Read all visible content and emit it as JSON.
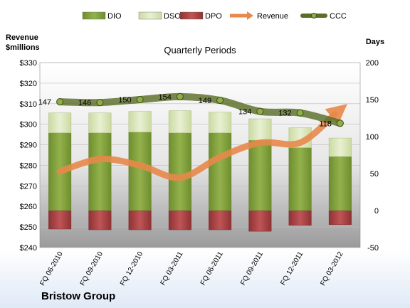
{
  "chart_data": {
    "type": "bar",
    "title": "Quarterly Periods",
    "company": "Bristow Group",
    "left_axis_label": [
      "Revenue",
      "$millions"
    ],
    "right_axis_label": "Days",
    "categories": [
      "FQ 06-2010",
      "FQ 09-2010",
      "FQ 12-2010",
      "FQ 03-2011",
      "FQ 06-2011",
      "FQ 09-2011",
      "FQ 12-2011",
      "FQ 03-2012"
    ],
    "left_axis": {
      "min": 240,
      "max": 330,
      "step": 10,
      "prefix": "$"
    },
    "right_axis": {
      "min": -50,
      "max": 200,
      "step": 50
    },
    "grid": true,
    "legend_position": "top",
    "series": [
      {
        "name": "DIO",
        "kind": "stacked-bar",
        "axis": "days",
        "color": "#7f9f3b",
        "values": [
          105,
          105,
          106,
          105,
          105,
          95,
          85,
          73
        ]
      },
      {
        "name": "DSO",
        "kind": "stacked-bar",
        "axis": "days",
        "color": "#d7e4b4",
        "values": [
          27,
          27,
          28,
          30,
          28,
          29,
          27,
          25
        ]
      },
      {
        "name": "DPO",
        "kind": "negative-bar",
        "axis": "days",
        "color": "#b0484a",
        "values": [
          -25,
          -26,
          -26,
          -26,
          -26,
          -28,
          -20,
          -19
        ]
      },
      {
        "name": "Revenue",
        "kind": "line",
        "axis": "revenue",
        "color": "#e8884a",
        "values": [
          277,
          283,
          280,
          274,
          284,
          291,
          291,
          307
        ]
      },
      {
        "name": "CCC",
        "kind": "line",
        "axis": "days",
        "color": "#5a6e28",
        "values": [
          147,
          146,
          150,
          154,
          149,
          134,
          132,
          118
        ]
      }
    ],
    "data_labels": [
      "147",
      "146",
      "150",
      "154",
      "149",
      "134",
      "132",
      "118"
    ]
  }
}
